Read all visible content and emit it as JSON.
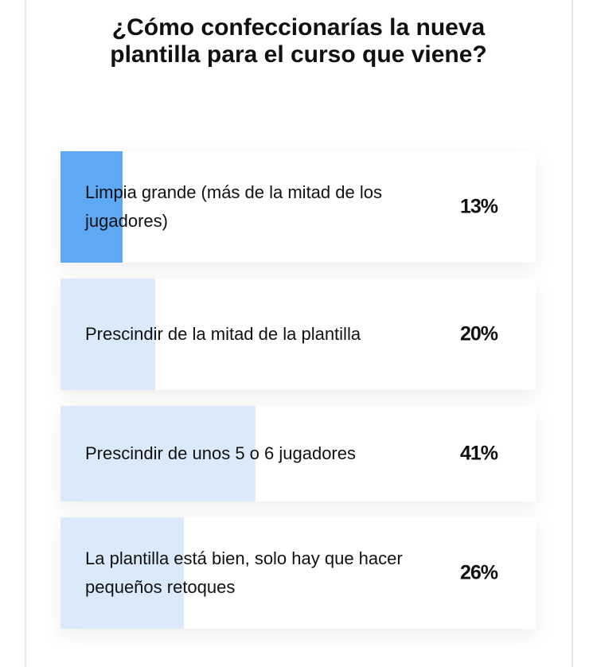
{
  "poll": {
    "question": "¿Cómo confeccionarías la nueva plantilla para el curso que viene?",
    "accent_color": "#5ea8f4",
    "bar_color": "#dbeafa",
    "options": [
      {
        "label": "Limpia grande (más de la mitad de los jugadores)",
        "percent_label": "13%",
        "percent": 13,
        "selected": true
      },
      {
        "label": "Prescindir de la mitad de la plantilla",
        "percent_label": "20%",
        "percent": 20,
        "selected": false
      },
      {
        "label": "Prescindir de unos 5 o 6 jugadores",
        "percent_label": "41%",
        "percent": 41,
        "selected": false
      },
      {
        "label": "La plantilla está bien, solo hay que hacer pequeños retoques",
        "percent_label": "26%",
        "percent": 26,
        "selected": false
      }
    ]
  }
}
